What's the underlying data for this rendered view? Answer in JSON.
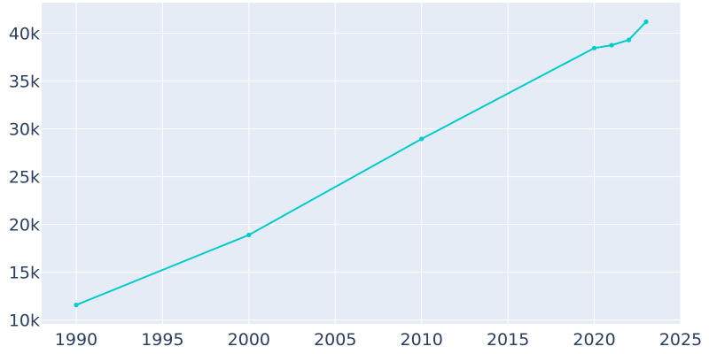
{
  "chart_data": {
    "type": "line",
    "title": "",
    "xlabel": "",
    "ylabel": "",
    "x": [
      1990,
      2000,
      2010,
      2020,
      2021,
      2022,
      2023
    ],
    "series": [
      {
        "values": [
          11580,
          18900,
          28950,
          38450,
          38750,
          39300,
          41200
        ]
      }
    ],
    "xlim": [
      1988,
      2025
    ],
    "ylim": [
      9600,
      43200
    ],
    "x_ticks": [
      1990,
      1995,
      2000,
      2005,
      2010,
      2015,
      2020,
      2025
    ],
    "x_tick_labels": [
      "1990",
      "1995",
      "2000",
      "2005",
      "2010",
      "2015",
      "2020",
      "2025"
    ],
    "y_ticks": [
      10000,
      15000,
      20000,
      25000,
      30000,
      35000,
      40000
    ],
    "y_tick_labels": [
      "10k",
      "15k",
      "20k",
      "25k",
      "30k",
      "35k",
      "40k"
    ],
    "grid": true,
    "legend": "none",
    "colors": {
      "plot_background": "#e5ecf6",
      "grid": "#ffffff",
      "line": "#00cccc",
      "tick_text": "#2a3f5f"
    }
  }
}
